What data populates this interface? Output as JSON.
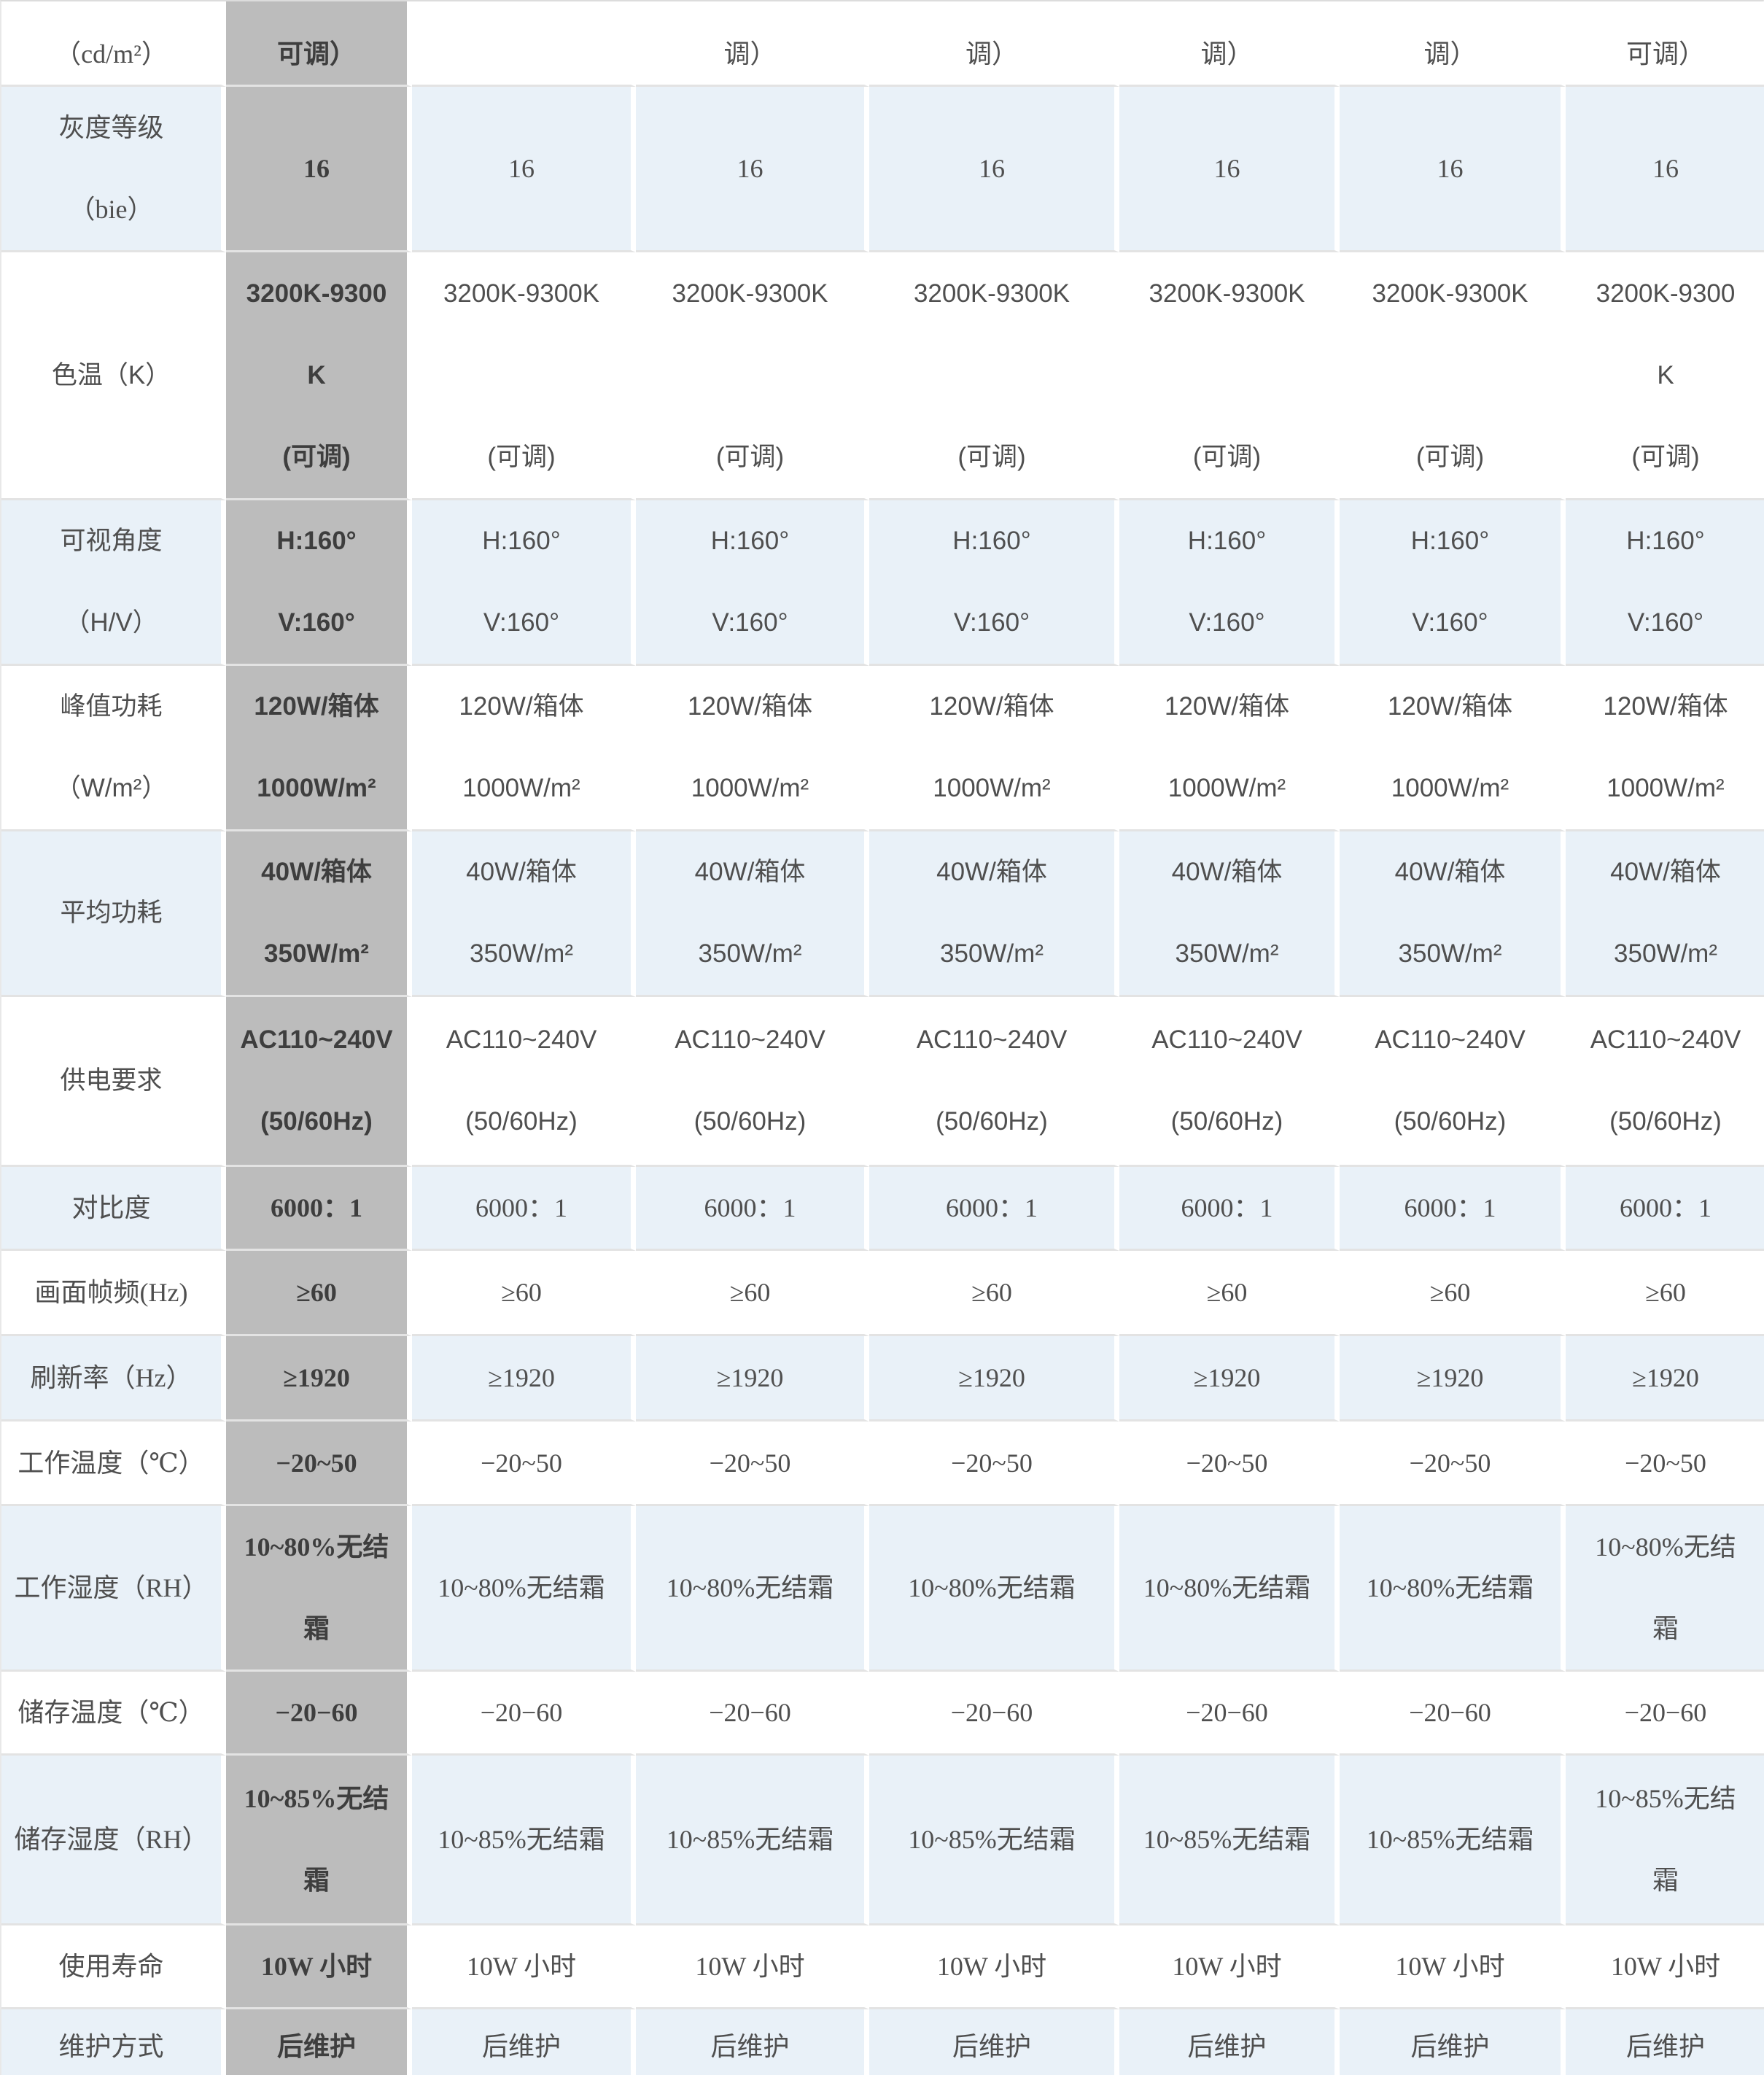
{
  "palette": {
    "highlight_gray": "#bcbcbc",
    "row_blue": "#e9f1f8",
    "grid_line": "#e3e3e3",
    "text_color": "#4f4f4f"
  },
  "table": {
    "rows": [
      {
        "label": "（cd/m²）",
        "values": [
          "可调）",
          "",
          "调）",
          "调）",
          "调）",
          "调）",
          "可调）"
        ]
      },
      {
        "label": "灰度等级\n（bie）",
        "values": [
          "16",
          "16",
          "16",
          "16",
          "16",
          "16",
          "16"
        ]
      },
      {
        "label": "色温（K）",
        "values": [
          "3200K-9300\nK\n(可调)",
          "3200K-9300K\n\n(可调)",
          "3200K-9300K\n\n(可调)",
          "3200K-9300K\n\n(可调)",
          "3200K-9300K\n\n(可调)",
          "3200K-9300K\n\n(可调)",
          "3200K-9300\nK\n(可调)"
        ]
      },
      {
        "label": "可视角度\n（H/V）",
        "values": [
          "H:160°\nV:160°",
          "H:160°\nV:160°",
          "H:160°\nV:160°",
          "H:160°\nV:160°",
          "H:160°\nV:160°",
          "H:160°\nV:160°",
          "H:160°\nV:160°"
        ]
      },
      {
        "label": "峰值功耗\n（W/m²）",
        "values": [
          "120W/箱体\n1000W/m²",
          "120W/箱体\n1000W/m²",
          "120W/箱体\n1000W/m²",
          "120W/箱体\n1000W/m²",
          "120W/箱体\n1000W/m²",
          "120W/箱体\n1000W/m²",
          "120W/箱体\n1000W/m²"
        ]
      },
      {
        "label": "平均功耗",
        "values": [
          "40W/箱体\n350W/m²",
          "40W/箱体\n350W/m²",
          "40W/箱体\n350W/m²",
          "40W/箱体\n350W/m²",
          "40W/箱体\n350W/m²",
          "40W/箱体\n350W/m²",
          "40W/箱体\n350W/m²"
        ]
      },
      {
        "label": "供电要求",
        "values": [
          "AC110~240V\n(50/60Hz)",
          "AC110~240V\n(50/60Hz)",
          "AC110~240V\n(50/60Hz)",
          "AC110~240V\n(50/60Hz)",
          "AC110~240V\n(50/60Hz)",
          "AC110~240V\n(50/60Hz)",
          "AC110~240V\n(50/60Hz)"
        ]
      },
      {
        "label": "对比度",
        "values": [
          "6000：1",
          "6000：1",
          "6000：1",
          "6000：1",
          "6000：1",
          "6000：1",
          "6000：1"
        ]
      },
      {
        "label": "画面帧频(Hz)",
        "values": [
          "≥60",
          "≥60",
          "≥60",
          "≥60",
          "≥60",
          "≥60",
          "≥60"
        ]
      },
      {
        "label": "刷新率（Hz）",
        "values": [
          "≥1920",
          "≥1920",
          "≥1920",
          "≥1920",
          "≥1920",
          "≥1920",
          "≥1920"
        ]
      },
      {
        "label": "工作温度（℃）",
        "values": [
          "−20~50",
          "−20~50",
          "−20~50",
          "−20~50",
          "−20~50",
          "−20~50",
          "−20~50"
        ]
      },
      {
        "label": "工作湿度（RH）",
        "values": [
          "10~80%无结\n霜",
          "10~80%无结霜",
          "10~80%无结霜",
          "10~80%无结霜",
          "10~80%无结霜",
          "10~80%无结霜",
          "10~80%无结\n霜"
        ]
      },
      {
        "label": "储存温度（℃）",
        "values": [
          "−20−60",
          "−20−60",
          "−20−60",
          "−20−60",
          "−20−60",
          "−20−60",
          "−20−60"
        ]
      },
      {
        "label": "储存湿度（RH）",
        "values": [
          "10~85%无结\n霜",
          "10~85%无结霜",
          "10~85%无结霜",
          "10~85%无结霜",
          "10~85%无结霜",
          "10~85%无结霜",
          "10~85%无结\n霜"
        ]
      },
      {
        "label": "使用寿命",
        "values": [
          "10W 小时",
          "10W 小时",
          "10W 小时",
          "10W 小时",
          "10W 小时",
          "10W 小时",
          "10W 小时"
        ]
      },
      {
        "label": "维护方式",
        "values": [
          "后维护",
          "后维护",
          "后维护",
          "后维护",
          "后维护",
          "后维护",
          "后维护"
        ]
      }
    ]
  }
}
